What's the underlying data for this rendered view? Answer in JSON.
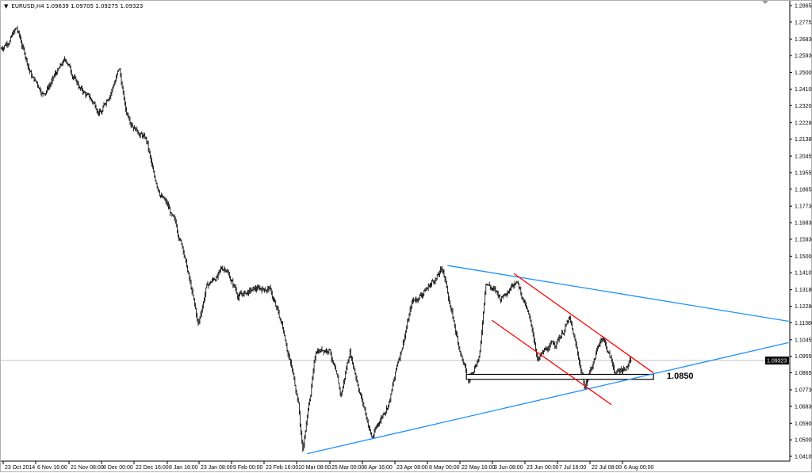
{
  "window": {
    "symbol_line": "EURUSD,H4  1.09639 1.09705 1.09275 1.09323",
    "dropdown_icon": "triangle-down-icon"
  },
  "chart_data": {
    "type": "bar",
    "symbol": "EURUSD",
    "timeframe": "H4",
    "ohlc_last": {
      "open": 1.09639,
      "high": 1.09705,
      "low": 1.09275,
      "close": 1.09323
    },
    "current_price": 1.09323,
    "current_price_label": "1.09323",
    "ylim": [
      1.04105,
      1.28655
    ],
    "grid": false,
    "y_ticks": [
      "1.28655",
      "1.27755",
      "1.26830",
      "1.25930",
      "1.25005",
      "1.24105",
      "1.23205",
      "1.22280",
      "1.21380",
      "1.20455",
      "1.19555",
      "1.18655",
      "1.17730",
      "1.16830",
      "1.15930",
      "1.15005",
      "1.14105",
      "1.13180",
      "1.12280",
      "1.11380",
      "1.10455",
      "1.09555",
      "1.08655",
      "1.07730",
      "1.06830",
      "1.05905",
      "1.05005",
      "1.04105"
    ],
    "x_ticks": [
      {
        "label": "23 Oct 2014",
        "date": "2014-10-23T00:00"
      },
      {
        "label": "6 Nov 16:00",
        "date": "2014-11-06T16:00"
      },
      {
        "label": "21 Nov 08:00",
        "date": "2014-11-21T08:00"
      },
      {
        "label": "8 Dec 00:00",
        "date": "2014-12-08T00:00"
      },
      {
        "label": "22 Dec 16:00",
        "date": "2014-12-22T16:00"
      },
      {
        "label": "8 Jan 16:00",
        "date": "2015-01-08T16:00"
      },
      {
        "label": "23 Jan 08:00",
        "date": "2015-01-23T08:00"
      },
      {
        "label": "9 Feb 00:00",
        "date": "2015-02-09T00:00"
      },
      {
        "label": "23 Feb 16:00",
        "date": "2015-02-23T16:00"
      },
      {
        "label": "10 Mar 08:00",
        "date": "2015-03-10T08:00"
      },
      {
        "label": "25 Mar 00:00",
        "date": "2015-03-25T00:00"
      },
      {
        "label": "8 Apr 16:00",
        "date": "2015-04-08T16:00"
      },
      {
        "label": "23 Apr 08:00",
        "date": "2015-04-23T08:00"
      },
      {
        "label": "8 May 00:00",
        "date": "2015-05-08T00:00"
      },
      {
        "label": "22 May 16:00",
        "date": "2015-05-22T16:00"
      },
      {
        "label": "8 Jun 08:00",
        "date": "2015-06-08T08:00"
      },
      {
        "label": "23 Jun 00:00",
        "date": "2015-06-23T00:00"
      },
      {
        "label": "7 Jul 16:00",
        "date": "2015-07-07T16:00"
      },
      {
        "label": "22 Jul 08:00",
        "date": "2015-07-22T08:00"
      },
      {
        "label": "6 Aug 00:00",
        "date": "2015-08-06T00:00"
      }
    ],
    "price_path": [
      [
        "2014-10-22",
        1.2632
      ],
      [
        "2014-10-29",
        1.274
      ],
      [
        "2014-11-05",
        1.248
      ],
      [
        "2014-11-10",
        1.2394
      ],
      [
        "2014-11-20",
        1.2567
      ],
      [
        "2014-11-27",
        1.2415
      ],
      [
        "2014-12-08",
        1.2285
      ],
      [
        "2014-12-16",
        1.2523
      ],
      [
        "2014-12-19",
        1.2285
      ],
      [
        "2014-12-29",
        1.2134
      ],
      [
        "2015-01-02",
        1.1917
      ],
      [
        "2015-01-09",
        1.1766
      ],
      [
        "2015-01-16",
        1.155
      ],
      [
        "2015-01-23",
        1.1117
      ],
      [
        "2015-01-27",
        1.1333
      ],
      [
        "2015-02-06",
        1.1441
      ],
      [
        "2015-02-12",
        1.129
      ],
      [
        "2015-02-26",
        1.1333
      ],
      [
        "2015-03-05",
        1.1074
      ],
      [
        "2015-03-11",
        1.0727
      ],
      [
        "2015-03-13",
        1.0447
      ],
      [
        "2015-03-19",
        1.0987
      ],
      [
        "2015-03-25",
        1.1009
      ],
      [
        "2015-03-30",
        1.0727
      ],
      [
        "2015-04-03",
        1.0987
      ],
      [
        "2015-04-13",
        1.0511
      ],
      [
        "2015-04-21",
        1.0727
      ],
      [
        "2015-05-01",
        1.1247
      ],
      [
        "2015-05-08",
        1.1333
      ],
      [
        "2015-05-15",
        1.1428
      ],
      [
        "2015-05-21",
        1.1074
      ],
      [
        "2015-05-27",
        1.0814
      ],
      [
        "2015-06-02",
        1.0987
      ],
      [
        "2015-06-05",
        1.1376
      ],
      [
        "2015-06-12",
        1.1268
      ],
      [
        "2015-06-19",
        1.1398
      ],
      [
        "2015-06-24",
        1.1203
      ],
      [
        "2015-06-29",
        1.0944
      ],
      [
        "2015-07-07",
        1.103
      ],
      [
        "2015-07-13",
        1.116
      ],
      [
        "2015-07-20",
        1.0792
      ],
      [
        "2015-07-28",
        1.1074
      ],
      [
        "2015-08-03",
        1.0857
      ],
      [
        "2015-08-10",
        1.0932
      ]
    ],
    "trendlines": [
      {
        "id": "blue-upper",
        "color": "#1e90ff",
        "from": [
          "2015-05-17",
          1.145
        ],
        "to": [
          "2015-10-20",
          1.1146
        ]
      },
      {
        "id": "blue-lower",
        "color": "#1e90ff",
        "from": [
          "2015-03-15",
          1.0425
        ],
        "to": [
          "2015-10-20",
          1.103
        ]
      },
      {
        "id": "red-upper",
        "color": "#ff0000",
        "from": [
          "2015-06-18",
          1.1406
        ],
        "to": [
          "2015-08-20",
          1.0865
        ]
      },
      {
        "id": "red-lower",
        "color": "#ff0000",
        "from": [
          "2015-06-08",
          1.1152
        ],
        "to": [
          "2015-08-01",
          1.0692
        ]
      }
    ],
    "support_zone": {
      "from": "2015-05-26",
      "to": "2015-08-20",
      "low": 1.083,
      "high": 1.0857
    },
    "annotation": {
      "text": "1.0850",
      "price": 1.085,
      "date": "2015-08-26"
    }
  }
}
